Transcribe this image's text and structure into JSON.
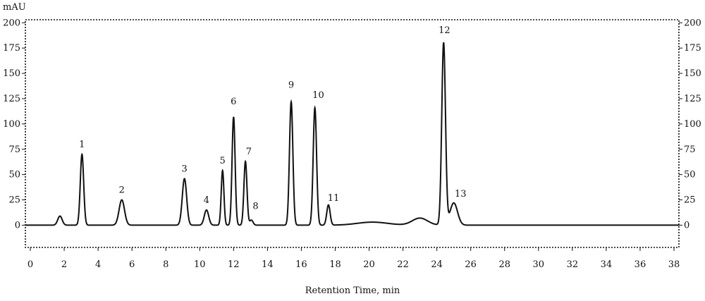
{
  "chart_data": {
    "type": "line",
    "title": "",
    "xlabel": "Retention Time, min",
    "ylabel": "mAU",
    "xlim": [
      0,
      38
    ],
    "ylim": [
      -22,
      203
    ],
    "x_ticks": [
      0,
      2,
      4,
      6,
      8,
      10,
      12,
      14,
      16,
      18,
      20,
      22,
      24,
      26,
      28,
      30,
      32,
      34,
      36,
      38
    ],
    "y_ticks": [
      0,
      25,
      50,
      75,
      100,
      125,
      150,
      175,
      200
    ],
    "grid": false,
    "baseline": 0,
    "peaks": [
      {
        "label": "",
        "rt": 1.75,
        "height": 9,
        "width": 0.13
      },
      {
        "label": "1",
        "rt": 3.05,
        "height": 70,
        "width": 0.1
      },
      {
        "label": "2",
        "rt": 5.4,
        "height": 25,
        "width": 0.16
      },
      {
        "label": "3",
        "rt": 9.1,
        "height": 46,
        "width": 0.13
      },
      {
        "label": "4",
        "rt": 10.4,
        "height": 15,
        "width": 0.13
      },
      {
        "label": "5",
        "rt": 11.35,
        "height": 54,
        "width": 0.08
      },
      {
        "label": "6",
        "rt": 12.0,
        "height": 107,
        "width": 0.09
      },
      {
        "label": "7",
        "rt": 12.7,
        "height": 63,
        "width": 0.09
      },
      {
        "label": "8",
        "rt": 13.05,
        "height": 5,
        "width": 0.1
      },
      {
        "label": "9",
        "rt": 15.4,
        "height": 122,
        "width": 0.1
      },
      {
        "label": "10",
        "rt": 16.8,
        "height": 116,
        "width": 0.1
      },
      {
        "label": "11",
        "rt": 17.6,
        "height": 20,
        "width": 0.1
      },
      {
        "label": "",
        "rt": 20.2,
        "height": 3,
        "width": 0.9
      },
      {
        "label": "",
        "rt": 23.0,
        "height": 7,
        "width": 0.45
      },
      {
        "label": "12",
        "rt": 24.4,
        "height": 180,
        "width": 0.11
      },
      {
        "label": "13",
        "rt": 25.0,
        "height": 22,
        "width": 0.22
      }
    ],
    "line_color": "#111111"
  }
}
